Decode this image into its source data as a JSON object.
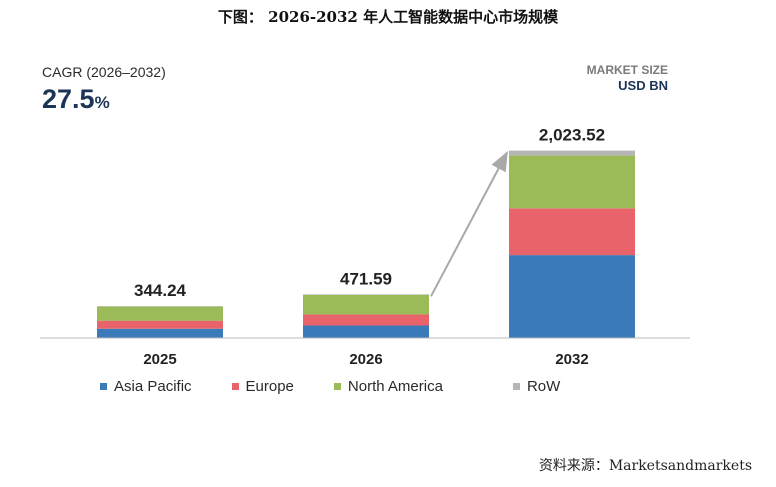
{
  "title": "下图： 2026-2032 年人工智能数据中心市场规模",
  "cagr": {
    "label": "CAGR (2026–2032)",
    "value": "27.5",
    "unit": "%"
  },
  "market_size": {
    "label": "MARKET SIZE",
    "unit": "USD BN"
  },
  "source": "资料来源：Marketsandmarkets",
  "colors": {
    "asia_pacific": "#3a7ab8",
    "europe": "#e8636a",
    "north_america": "#9bbb59",
    "row": "#b5b5b5",
    "arrow": "#a9a9a9",
    "axis": "#bbbbbb"
  },
  "chart_data": {
    "type": "bar",
    "stacked": true,
    "categories": [
      "2025",
      "2026",
      "2032"
    ],
    "totals": [
      "344.24",
      "471.59",
      "2,023.52"
    ],
    "series": [
      {
        "name": "Asia Pacific",
        "values": [
          100,
          135,
          895
        ]
      },
      {
        "name": "Europe",
        "values": [
          87,
          120,
          505
        ]
      },
      {
        "name": "North America",
        "values": [
          152,
          210,
          570
        ]
      },
      {
        "name": "RoW",
        "values": [
          5.24,
          6.59,
          53.52
        ]
      }
    ],
    "ylim": [
      0,
      2300
    ],
    "grid": false,
    "legend": "bottom",
    "annotation": "arrow from 2026 to 2032"
  }
}
